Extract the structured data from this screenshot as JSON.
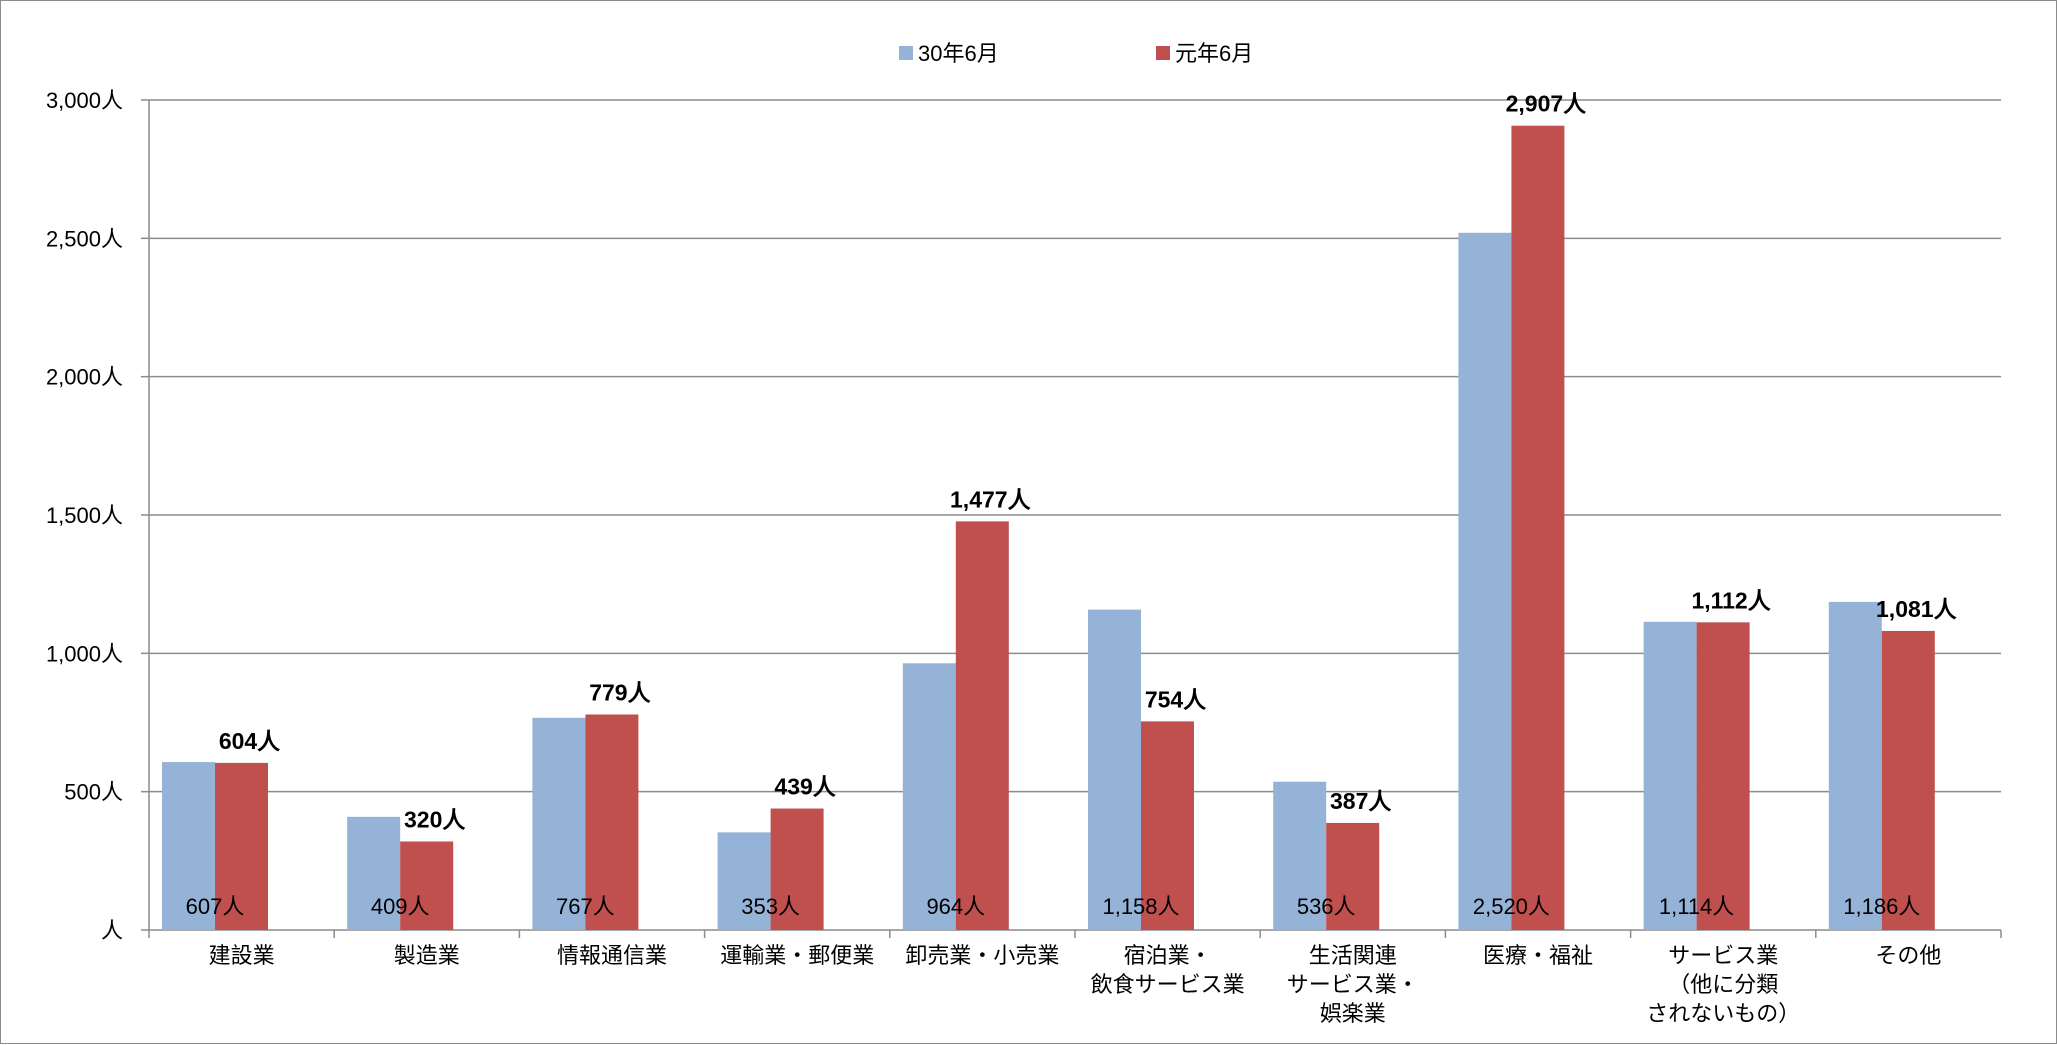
{
  "chart_data": {
    "type": "bar",
    "categories": [
      [
        "建設業"
      ],
      [
        "製造業"
      ],
      [
        "情報通信業"
      ],
      [
        "運輸業・郵便業"
      ],
      [
        "卸売業・小売業"
      ],
      [
        "宿泊業・",
        "飲食サービス業"
      ],
      [
        "生活関連",
        "サービス業・",
        "娯楽業"
      ],
      [
        "医療・福祉"
      ],
      [
        "サービス業",
        "（他に分類",
        "されないもの）"
      ],
      [
        "その他"
      ]
    ],
    "series": [
      {
        "name": "30年6月",
        "color": "#95b3d7",
        "values": [
          607,
          409,
          767,
          353,
          964,
          1158,
          536,
          2520,
          1114,
          1186
        ],
        "labels": [
          "607人",
          "409人",
          "767人",
          "353人",
          "964人",
          "1,158人",
          "536人",
          "2,520人",
          "1,114人",
          "1,186人"
        ]
      },
      {
        "name": "元年6月",
        "color": "#c0504d",
        "values": [
          604,
          320,
          779,
          439,
          1477,
          754,
          387,
          2907,
          1112,
          1081
        ],
        "labels": [
          "604人",
          "320人",
          "779人",
          "439人",
          "1,477人",
          "754人",
          "387人",
          "2,907人",
          "1,112人",
          "1,081人"
        ]
      }
    ],
    "ylim": [
      0,
      3000
    ],
    "yticks": [
      0,
      500,
      1000,
      1500,
      2000,
      2500,
      3000
    ],
    "ytick_labels": [
      "人",
      "500人",
      "1,000人",
      "1,500人",
      "2,000人",
      "2,500人",
      "3,000人"
    ],
    "grid": true,
    "legend_position": "top-center",
    "title": "",
    "xlabel": "",
    "ylabel": ""
  }
}
